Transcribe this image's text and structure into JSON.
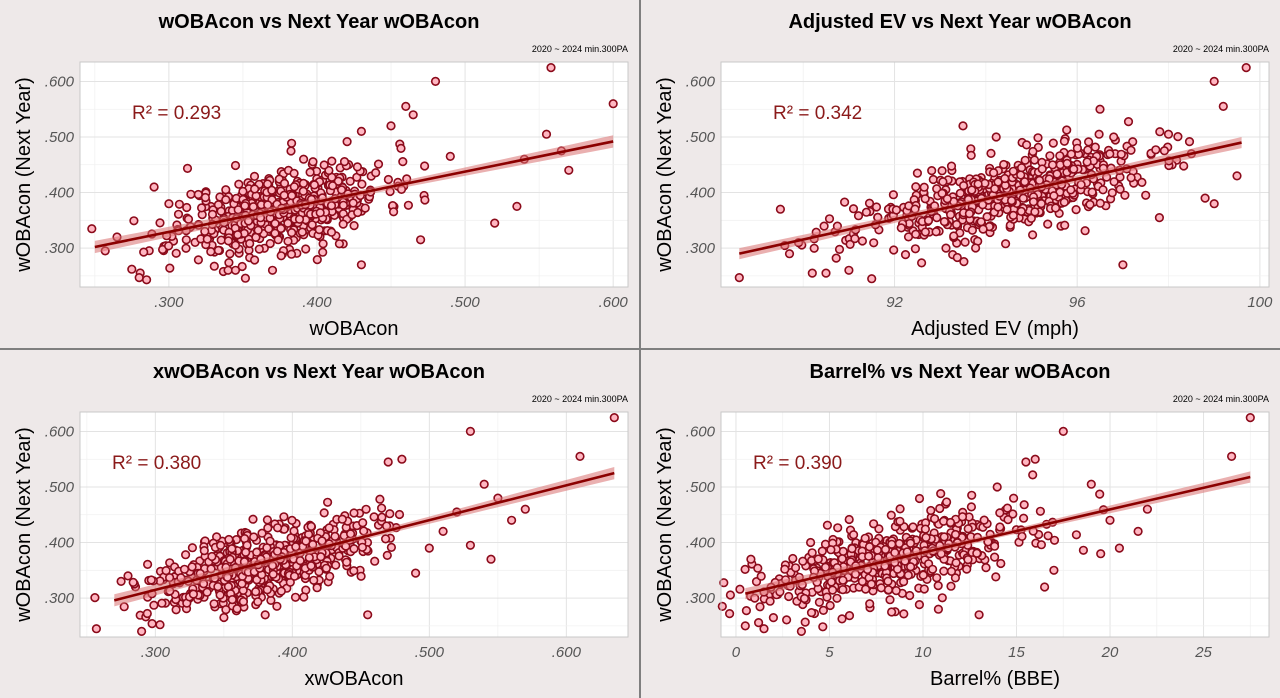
{
  "chart_data": [
    {
      "type": "scatter",
      "title": "wOBAcon vs Next Year wOBAcon",
      "subtitle": "2020 ~ 2024 min.300PA",
      "xlabel": "wOBAcon",
      "ylabel": "wOBAcon (Next Year)",
      "annotation": "R² = 0.293",
      "xlim": [
        0.24,
        0.61
      ],
      "ylim": [
        0.23,
        0.635
      ],
      "xticks": [
        0.3,
        0.4,
        0.5,
        0.6
      ],
      "xtick_labels": [
        ".300",
        ".400",
        ".500",
        ".600"
      ],
      "yticks": [
        0.3,
        0.4,
        0.5,
        0.6
      ],
      "ytick_labels": [
        ".300",
        ".400",
        ".500",
        ".600"
      ],
      "trend": {
        "x": [
          0.25,
          0.6
        ],
        "y": [
          0.302,
          0.492
        ],
        "band": 0.011
      },
      "cluster": {
        "n": 560,
        "mx": 0.375,
        "sx": 0.035,
        "slope": 0.54,
        "sy": 0.037,
        "seed": 11
      },
      "points": [
        [
          0.248,
          0.335
        ],
        [
          0.257,
          0.295
        ],
        [
          0.265,
          0.32
        ],
        [
          0.275,
          0.262
        ],
        [
          0.28,
          0.247
        ],
        [
          0.285,
          0.243
        ],
        [
          0.29,
          0.41
        ],
        [
          0.3,
          0.38
        ],
        [
          0.34,
          0.26
        ],
        [
          0.345,
          0.26
        ],
        [
          0.37,
          0.26
        ],
        [
          0.43,
          0.27
        ],
        [
          0.46,
          0.555
        ],
        [
          0.465,
          0.54
        ],
        [
          0.48,
          0.6
        ],
        [
          0.52,
          0.345
        ],
        [
          0.535,
          0.375
        ],
        [
          0.54,
          0.46
        ],
        [
          0.555,
          0.505
        ],
        [
          0.558,
          0.625
        ],
        [
          0.565,
          0.475
        ],
        [
          0.57,
          0.44
        ],
        [
          0.6,
          0.56
        ],
        [
          0.45,
          0.52
        ],
        [
          0.47,
          0.315
        ],
        [
          0.49,
          0.465
        ],
        [
          0.43,
          0.51
        ]
      ],
      "grid": true,
      "point_fill": "#ffb6c1",
      "point_stroke": "#8b0a1a",
      "line_color": "#8b0000",
      "band_color": "#d87070"
    },
    {
      "type": "scatter",
      "title": "Adjusted EV vs Next Year wOBAcon",
      "subtitle": "2020 ~ 2024 min.300PA",
      "xlabel": "Adjusted EV (mph)",
      "ylabel": "wOBAcon (Next Year)",
      "annotation": "R² = 0.342",
      "xlim": [
        88.2,
        100.2
      ],
      "ylim": [
        0.23,
        0.635
      ],
      "xticks": [
        92,
        96,
        100
      ],
      "xtick_labels": [
        "92",
        "96",
        "100"
      ],
      "yticks": [
        0.3,
        0.4,
        0.5,
        0.6
      ],
      "ytick_labels": [
        ".300",
        ".400",
        ".500",
        ".600"
      ],
      "trend": {
        "x": [
          88.6,
          99.6
        ],
        "y": [
          0.29,
          0.49
        ],
        "band": 0.01
      },
      "cluster": {
        "n": 560,
        "mx": 94.3,
        "sx": 1.6,
        "slope": 0.0182,
        "sy": 0.035,
        "seed": 23
      },
      "points": [
        [
          88.6,
          0.247
        ],
        [
          89.5,
          0.37
        ],
        [
          89.7,
          0.29
        ],
        [
          89.9,
          0.31
        ],
        [
          90.2,
          0.255
        ],
        [
          90.5,
          0.255
        ],
        [
          91.0,
          0.26
        ],
        [
          91.5,
          0.245
        ],
        [
          97.0,
          0.27
        ],
        [
          98.0,
          0.505
        ],
        [
          98.5,
          0.47
        ],
        [
          99.0,
          0.6
        ],
        [
          99.2,
          0.555
        ],
        [
          99.5,
          0.43
        ],
        [
          99.7,
          0.625
        ],
        [
          98.8,
          0.39
        ],
        [
          99.0,
          0.38
        ],
        [
          97.5,
          0.395
        ],
        [
          97.8,
          0.355
        ],
        [
          96.5,
          0.55
        ],
        [
          96.8,
          0.5
        ],
        [
          93.5,
          0.52
        ],
        [
          92.5,
          0.435
        ]
      ],
      "grid": true,
      "point_fill": "#ffb6c1",
      "point_stroke": "#8b0a1a",
      "line_color": "#8b0000",
      "band_color": "#d87070"
    },
    {
      "type": "scatter",
      "title": "xwOBAcon vs Next Year wOBAcon",
      "subtitle": "2020 ~ 2024 min.300PA",
      "xlabel": "xwOBAcon",
      "ylabel": "wOBAcon (Next Year)",
      "annotation": "R² = 0.380",
      "xlim": [
        0.245,
        0.645
      ],
      "ylim": [
        0.23,
        0.635
      ],
      "xticks": [
        0.3,
        0.4,
        0.5,
        0.6
      ],
      "xtick_labels": [
        ".300",
        ".400",
        ".500",
        ".600"
      ],
      "yticks": [
        0.3,
        0.4,
        0.5,
        0.6
      ],
      "ytick_labels": [
        ".300",
        ".400",
        ".500",
        ".600"
      ],
      "trend": {
        "x": [
          0.27,
          0.635
        ],
        "y": [
          0.296,
          0.525
        ],
        "band": 0.011
      },
      "cluster": {
        "n": 560,
        "mx": 0.38,
        "sx": 0.04,
        "slope": 0.63,
        "sy": 0.034,
        "seed": 37
      },
      "points": [
        [
          0.257,
          0.245
        ],
        [
          0.275,
          0.33
        ],
        [
          0.28,
          0.34
        ],
        [
          0.29,
          0.24
        ],
        [
          0.455,
          0.27
        ],
        [
          0.47,
          0.545
        ],
        [
          0.48,
          0.55
        ],
        [
          0.53,
          0.6
        ],
        [
          0.54,
          0.505
        ],
        [
          0.545,
          0.37
        ],
        [
          0.55,
          0.48
        ],
        [
          0.56,
          0.44
        ],
        [
          0.57,
          0.46
        ],
        [
          0.61,
          0.555
        ],
        [
          0.635,
          0.625
        ],
        [
          0.52,
          0.455
        ],
        [
          0.53,
          0.395
        ],
        [
          0.5,
          0.39
        ],
        [
          0.51,
          0.42
        ],
        [
          0.49,
          0.345
        ]
      ],
      "grid": true,
      "point_fill": "#ffb6c1",
      "point_stroke": "#8b0a1a",
      "line_color": "#8b0000",
      "band_color": "#d87070"
    },
    {
      "type": "scatter",
      "title": "Barrel% vs Next Year wOBAcon",
      "subtitle": "2020 ~ 2024 min.300PA",
      "xlabel": "Barrel% (BBE)",
      "ylabel": "wOBAcon (Next Year)",
      "annotation": "R² = 0.390",
      "xlim": [
        -0.8,
        28.5
      ],
      "ylim": [
        0.23,
        0.635
      ],
      "xticks": [
        0,
        5,
        10,
        15,
        20,
        25
      ],
      "xtick_labels": [
        "0",
        "5",
        "10",
        "15",
        "20",
        "25"
      ],
      "yticks": [
        0.3,
        0.4,
        0.5,
        0.6
      ],
      "ytick_labels": [
        ".300",
        ".400",
        ".500",
        ".600"
      ],
      "trend": {
        "x": [
          0.5,
          27.5
        ],
        "y": [
          0.308,
          0.518
        ],
        "band": 0.01
      },
      "cluster": {
        "n": 560,
        "mx": 8.5,
        "sx": 4.0,
        "slope": 0.0078,
        "sy": 0.036,
        "seed": 53
      },
      "points": [
        [
          0.5,
          0.25
        ],
        [
          0.8,
          0.37
        ],
        [
          1.0,
          0.3
        ],
        [
          1.5,
          0.245
        ],
        [
          2.0,
          0.265
        ],
        [
          3.5,
          0.24
        ],
        [
          13.0,
          0.27
        ],
        [
          16.5,
          0.32
        ],
        [
          17.5,
          0.6
        ],
        [
          19.0,
          0.505
        ],
        [
          20.0,
          0.44
        ],
        [
          20.5,
          0.39
        ],
        [
          22.0,
          0.46
        ],
        [
          26.5,
          0.555
        ],
        [
          27.5,
          0.625
        ],
        [
          19.5,
          0.38
        ],
        [
          17.0,
          0.35
        ],
        [
          21.5,
          0.42
        ],
        [
          15.5,
          0.545
        ],
        [
          16.0,
          0.55
        ]
      ],
      "grid": true,
      "point_fill": "#ffb6c1",
      "point_stroke": "#8b0a1a",
      "line_color": "#8b0000",
      "band_color": "#d87070"
    }
  ]
}
